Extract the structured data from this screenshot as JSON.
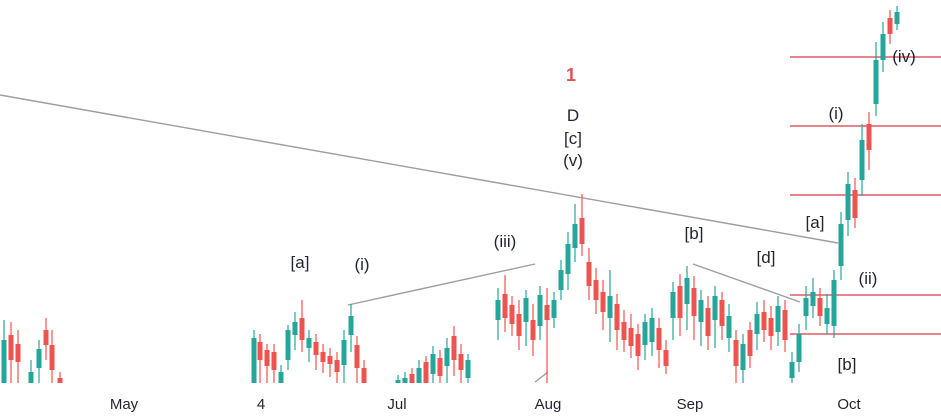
{
  "chart_data": {
    "type": "candlestick",
    "x_ticks": [
      "May",
      "4",
      "Jul",
      "Aug",
      "Sep",
      "Oct"
    ],
    "colors": {
      "up": "#26a69a",
      "down": "#ef5350",
      "level": "#d63946",
      "trend": "#9e9e9e",
      "label": "#1f2430",
      "primary_label": "#e05252"
    },
    "primary_label": "1",
    "wave_labels": [
      {
        "id": "a1",
        "text": "[a]"
      },
      {
        "id": "i1",
        "text": "(i)"
      },
      {
        "id": "iii",
        "text": "(iii)"
      },
      {
        "id": "D",
        "text": "D"
      },
      {
        "id": "c",
        "text": "[c]"
      },
      {
        "id": "v",
        "text": "(v)"
      },
      {
        "id": "b1",
        "text": "[b]"
      },
      {
        "id": "d",
        "text": "[d]"
      },
      {
        "id": "a2",
        "text": "[a]"
      },
      {
        "id": "i2",
        "text": "(i)"
      },
      {
        "id": "iv",
        "text": "(iv)"
      },
      {
        "id": "ii",
        "text": "(ii)"
      },
      {
        "id": "b2",
        "text": "[b]"
      }
    ],
    "horizontal_levels": 5,
    "trendlines": 4
  }
}
